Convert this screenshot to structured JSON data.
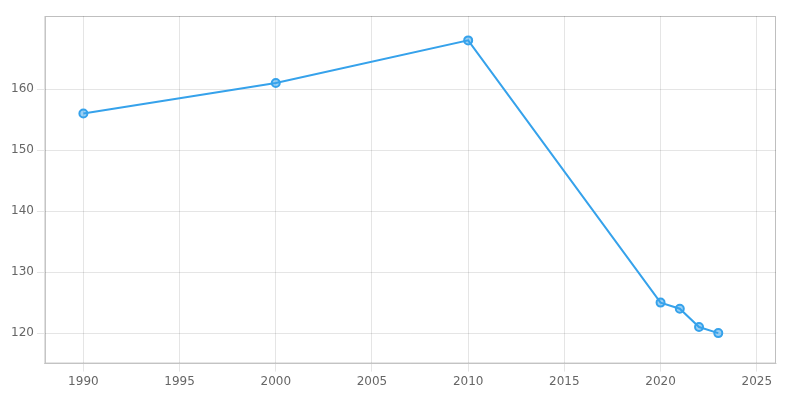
{
  "chart_data": {
    "type": "line",
    "x": [
      1990,
      2000,
      2010,
      2020,
      2021,
      2022,
      2023
    ],
    "values": [
      156,
      161,
      168,
      125,
      124,
      121,
      120
    ],
    "xlim": [
      1988,
      2026
    ],
    "xticks": [
      1990,
      1995,
      2000,
      2005,
      2010,
      2015,
      2020,
      2025
    ],
    "ylim": [
      115,
      172
    ],
    "yticks": [
      120,
      130,
      140,
      150,
      160
    ],
    "grid": true,
    "marker": "circle"
  }
}
